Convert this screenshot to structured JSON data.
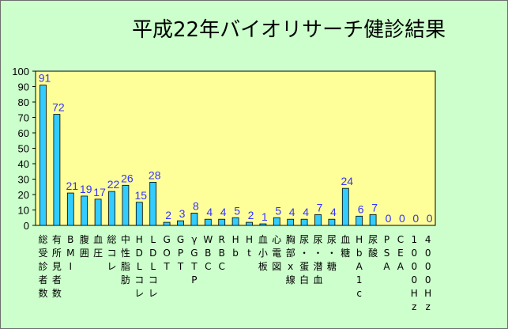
{
  "colors": {
    "background": "#ccffcc",
    "plot_area": "#ffff99",
    "bar_fill": "#33ccff",
    "data_label": "#3333ff"
  },
  "chart_data": {
    "type": "bar",
    "title": "平成22年バイオリサーチ健診結果",
    "xlabel": "",
    "ylabel": "",
    "ylim": [
      0,
      100
    ],
    "yticks": [
      0,
      10,
      20,
      30,
      40,
      50,
      60,
      70,
      80,
      90,
      100
    ],
    "grid": false,
    "legend": "none",
    "categories": [
      "総受診者数",
      "有所見者数",
      "BMI",
      "腹囲",
      "血圧",
      "総コレ",
      "中性脂肪",
      "HDLコレ",
      "LDLコレ",
      "GOT",
      "GPT",
      "γGTP",
      "WBC",
      "RBC",
      "Hb",
      "Ht",
      "血小板",
      "心電図",
      "胸部x線",
      "尿蛋白",
      "尿潜血",
      "尿糖",
      "血糖",
      "HbA1c",
      "尿酸",
      "PSA",
      "CEA",
      "1000Hz",
      "4000Hz"
    ],
    "category_label_lines": [
      [
        "総",
        "受",
        "診",
        "者",
        "数"
      ],
      [
        "有",
        "所",
        "見",
        "者",
        "数"
      ],
      [
        "B",
        "M",
        "I"
      ],
      [
        "腹",
        "囲"
      ],
      [
        "血",
        "圧"
      ],
      [
        "総",
        "コ",
        "レ"
      ],
      [
        "中",
        "性",
        "脂",
        "肪"
      ],
      [
        "H",
        "D",
        "L",
        "コ",
        "レ"
      ],
      [
        "L",
        "D",
        "L",
        "コ",
        "レ"
      ],
      [
        "G",
        "O",
        "T"
      ],
      [
        "G",
        "P",
        "T"
      ],
      [
        "γ",
        "G",
        "T",
        "P"
      ],
      [
        "W",
        "B",
        "C"
      ],
      [
        "R",
        "B",
        "C"
      ],
      [
        "H",
        "b"
      ],
      [
        "H",
        "t"
      ],
      [
        "血",
        "小",
        "板"
      ],
      [
        "心",
        "電",
        "図"
      ],
      [
        "胸",
        "部",
        "x",
        "線"
      ],
      [
        "尿",
        "・",
        "蛋",
        "白"
      ],
      [
        "尿",
        "・",
        "潜",
        "血"
      ],
      [
        "尿",
        "・",
        "糖"
      ],
      [
        "血",
        "糖"
      ],
      [
        "H",
        "b",
        "A",
        "1",
        "c"
      ],
      [
        "尿",
        "酸"
      ],
      [
        "P",
        "S",
        "A"
      ],
      [
        "C",
        "E",
        "A"
      ],
      [
        "1",
        "0",
        "0",
        "0",
        "H",
        "z"
      ],
      [
        "4",
        "0",
        "0",
        "0",
        "H",
        "z"
      ]
    ],
    "values": [
      91,
      72,
      21,
      19,
      17,
      22,
      26,
      15,
      28,
      2,
      3,
      8,
      4,
      4,
      5,
      2,
      1,
      5,
      4,
      4,
      7,
      4,
      24,
      6,
      7,
      0,
      0,
      0,
      0
    ],
    "show_data_labels": true
  }
}
